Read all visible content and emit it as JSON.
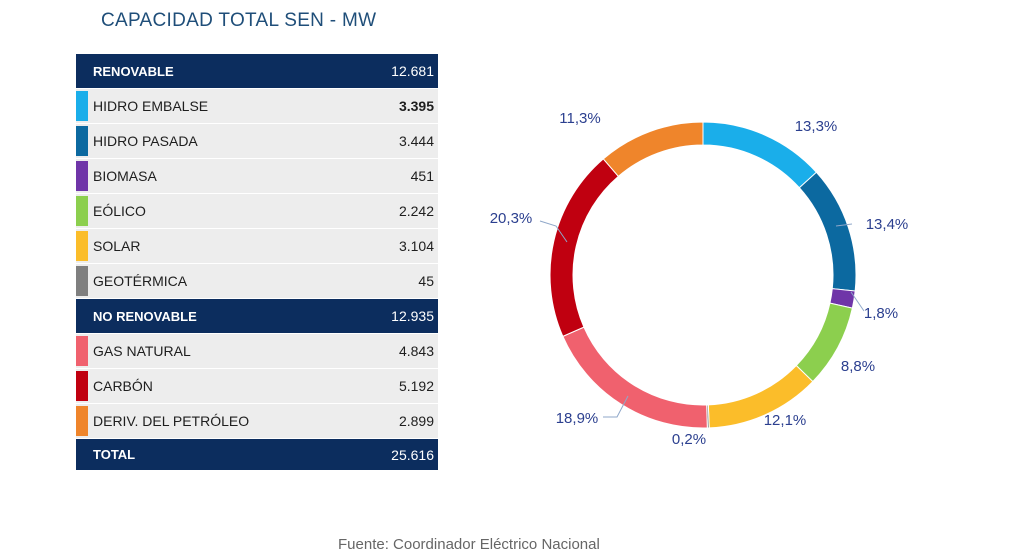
{
  "title": "CAPACIDAD TOTAL SEN - MW",
  "source": "Fuente: Coordinador Eléctrico Nacional",
  "table": {
    "rows": [
      {
        "kind": "header",
        "label": "RENOVABLE",
        "value": "12.681"
      },
      {
        "kind": "item",
        "label": "HIDRO EMBALSE",
        "value": "3.395",
        "color": "#1aaeea",
        "bold": true
      },
      {
        "kind": "item",
        "label": "HIDRO PASADA",
        "value": "3.444",
        "color": "#0c69a0"
      },
      {
        "kind": "item",
        "label": "BIOMASA",
        "value": "451",
        "color": "#6f35a8"
      },
      {
        "kind": "item",
        "label": "EÓLICO",
        "value": "2.242",
        "color": "#8ccf4e"
      },
      {
        "kind": "item",
        "label": "SOLAR",
        "value": "3.104",
        "color": "#fbbd2a"
      },
      {
        "kind": "item",
        "label": "GEOTÉRMICA",
        "value": "45",
        "color": "#7f7f7f"
      },
      {
        "kind": "header",
        "label": "NO RENOVABLE",
        "value": "12.935"
      },
      {
        "kind": "item",
        "label": "GAS NATURAL",
        "value": "4.843",
        "color": "#f0616e"
      },
      {
        "kind": "item",
        "label": "CARBÓN",
        "value": "5.192",
        "color": "#c00010"
      },
      {
        "kind": "item",
        "label": "DERIV. DEL PETRÓLEO",
        "value": "2.899",
        "color": "#ef852b"
      },
      {
        "kind": "total",
        "label": "TOTAL",
        "value": "25.616"
      }
    ]
  },
  "chart_data": {
    "type": "pie",
    "variant": "donut",
    "start": "top",
    "direction": "clockwise",
    "slices": [
      {
        "label": "HIDRO EMBALSE",
        "value": 13.3,
        "pct_label": "13,3%",
        "color": "#1aaeea"
      },
      {
        "label": "HIDRO PASADA",
        "value": 13.4,
        "pct_label": "13,4%",
        "color": "#0c69a0"
      },
      {
        "label": "BIOMASA",
        "value": 1.8,
        "pct_label": "1,8%",
        "color": "#6f35a8"
      },
      {
        "label": "EÓLICO",
        "value": 8.8,
        "pct_label": "8,8%",
        "color": "#8ccf4e"
      },
      {
        "label": "SOLAR",
        "value": 12.1,
        "pct_label": "12,1%",
        "color": "#fbbd2a"
      },
      {
        "label": "GEOTÉRMICA",
        "value": 0.2,
        "pct_label": "0,2%",
        "color": "#7f7f7f"
      },
      {
        "label": "GAS NATURAL",
        "value": 18.9,
        "pct_label": "18,9%",
        "color": "#f0616e"
      },
      {
        "label": "CARBÓN",
        "value": 20.3,
        "pct_label": "20,3%",
        "color": "#c00010"
      },
      {
        "label": "DERIV. DEL PETRÓLEO",
        "value": 11.3,
        "pct_label": "11,3%",
        "color": "#ef852b"
      }
    ]
  }
}
